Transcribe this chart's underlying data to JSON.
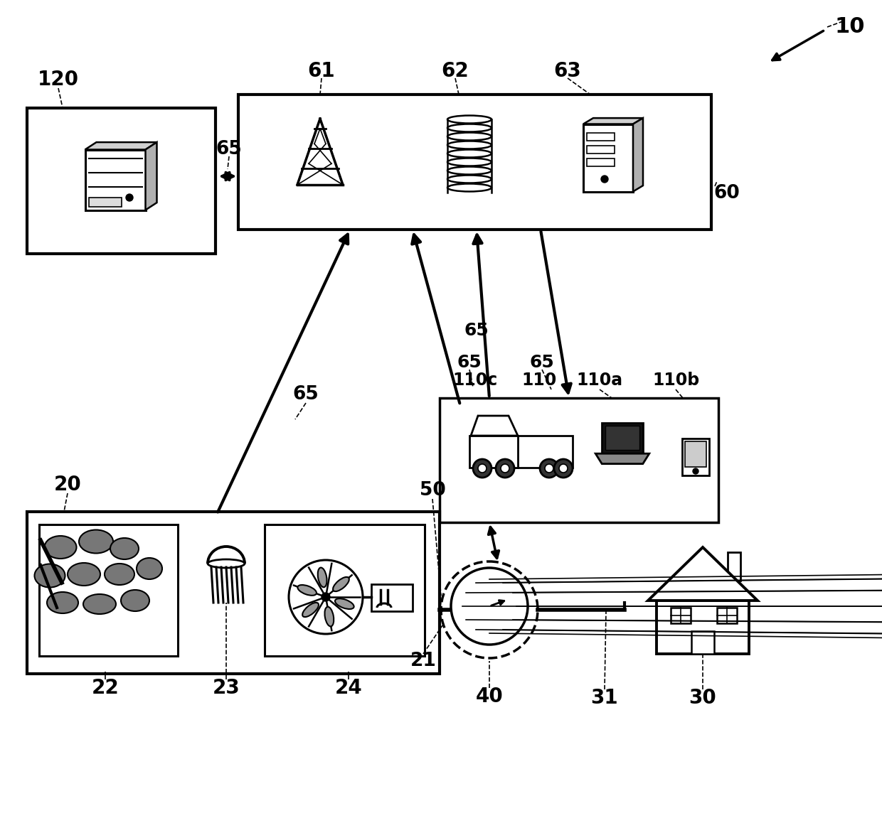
{
  "bg_color": "#ffffff",
  "fig_w": 12.4,
  "fig_h": 11.58,
  "dpi": 100,
  "xlim": [
    0,
    1240
  ],
  "ylim": [
    0,
    1158
  ]
}
